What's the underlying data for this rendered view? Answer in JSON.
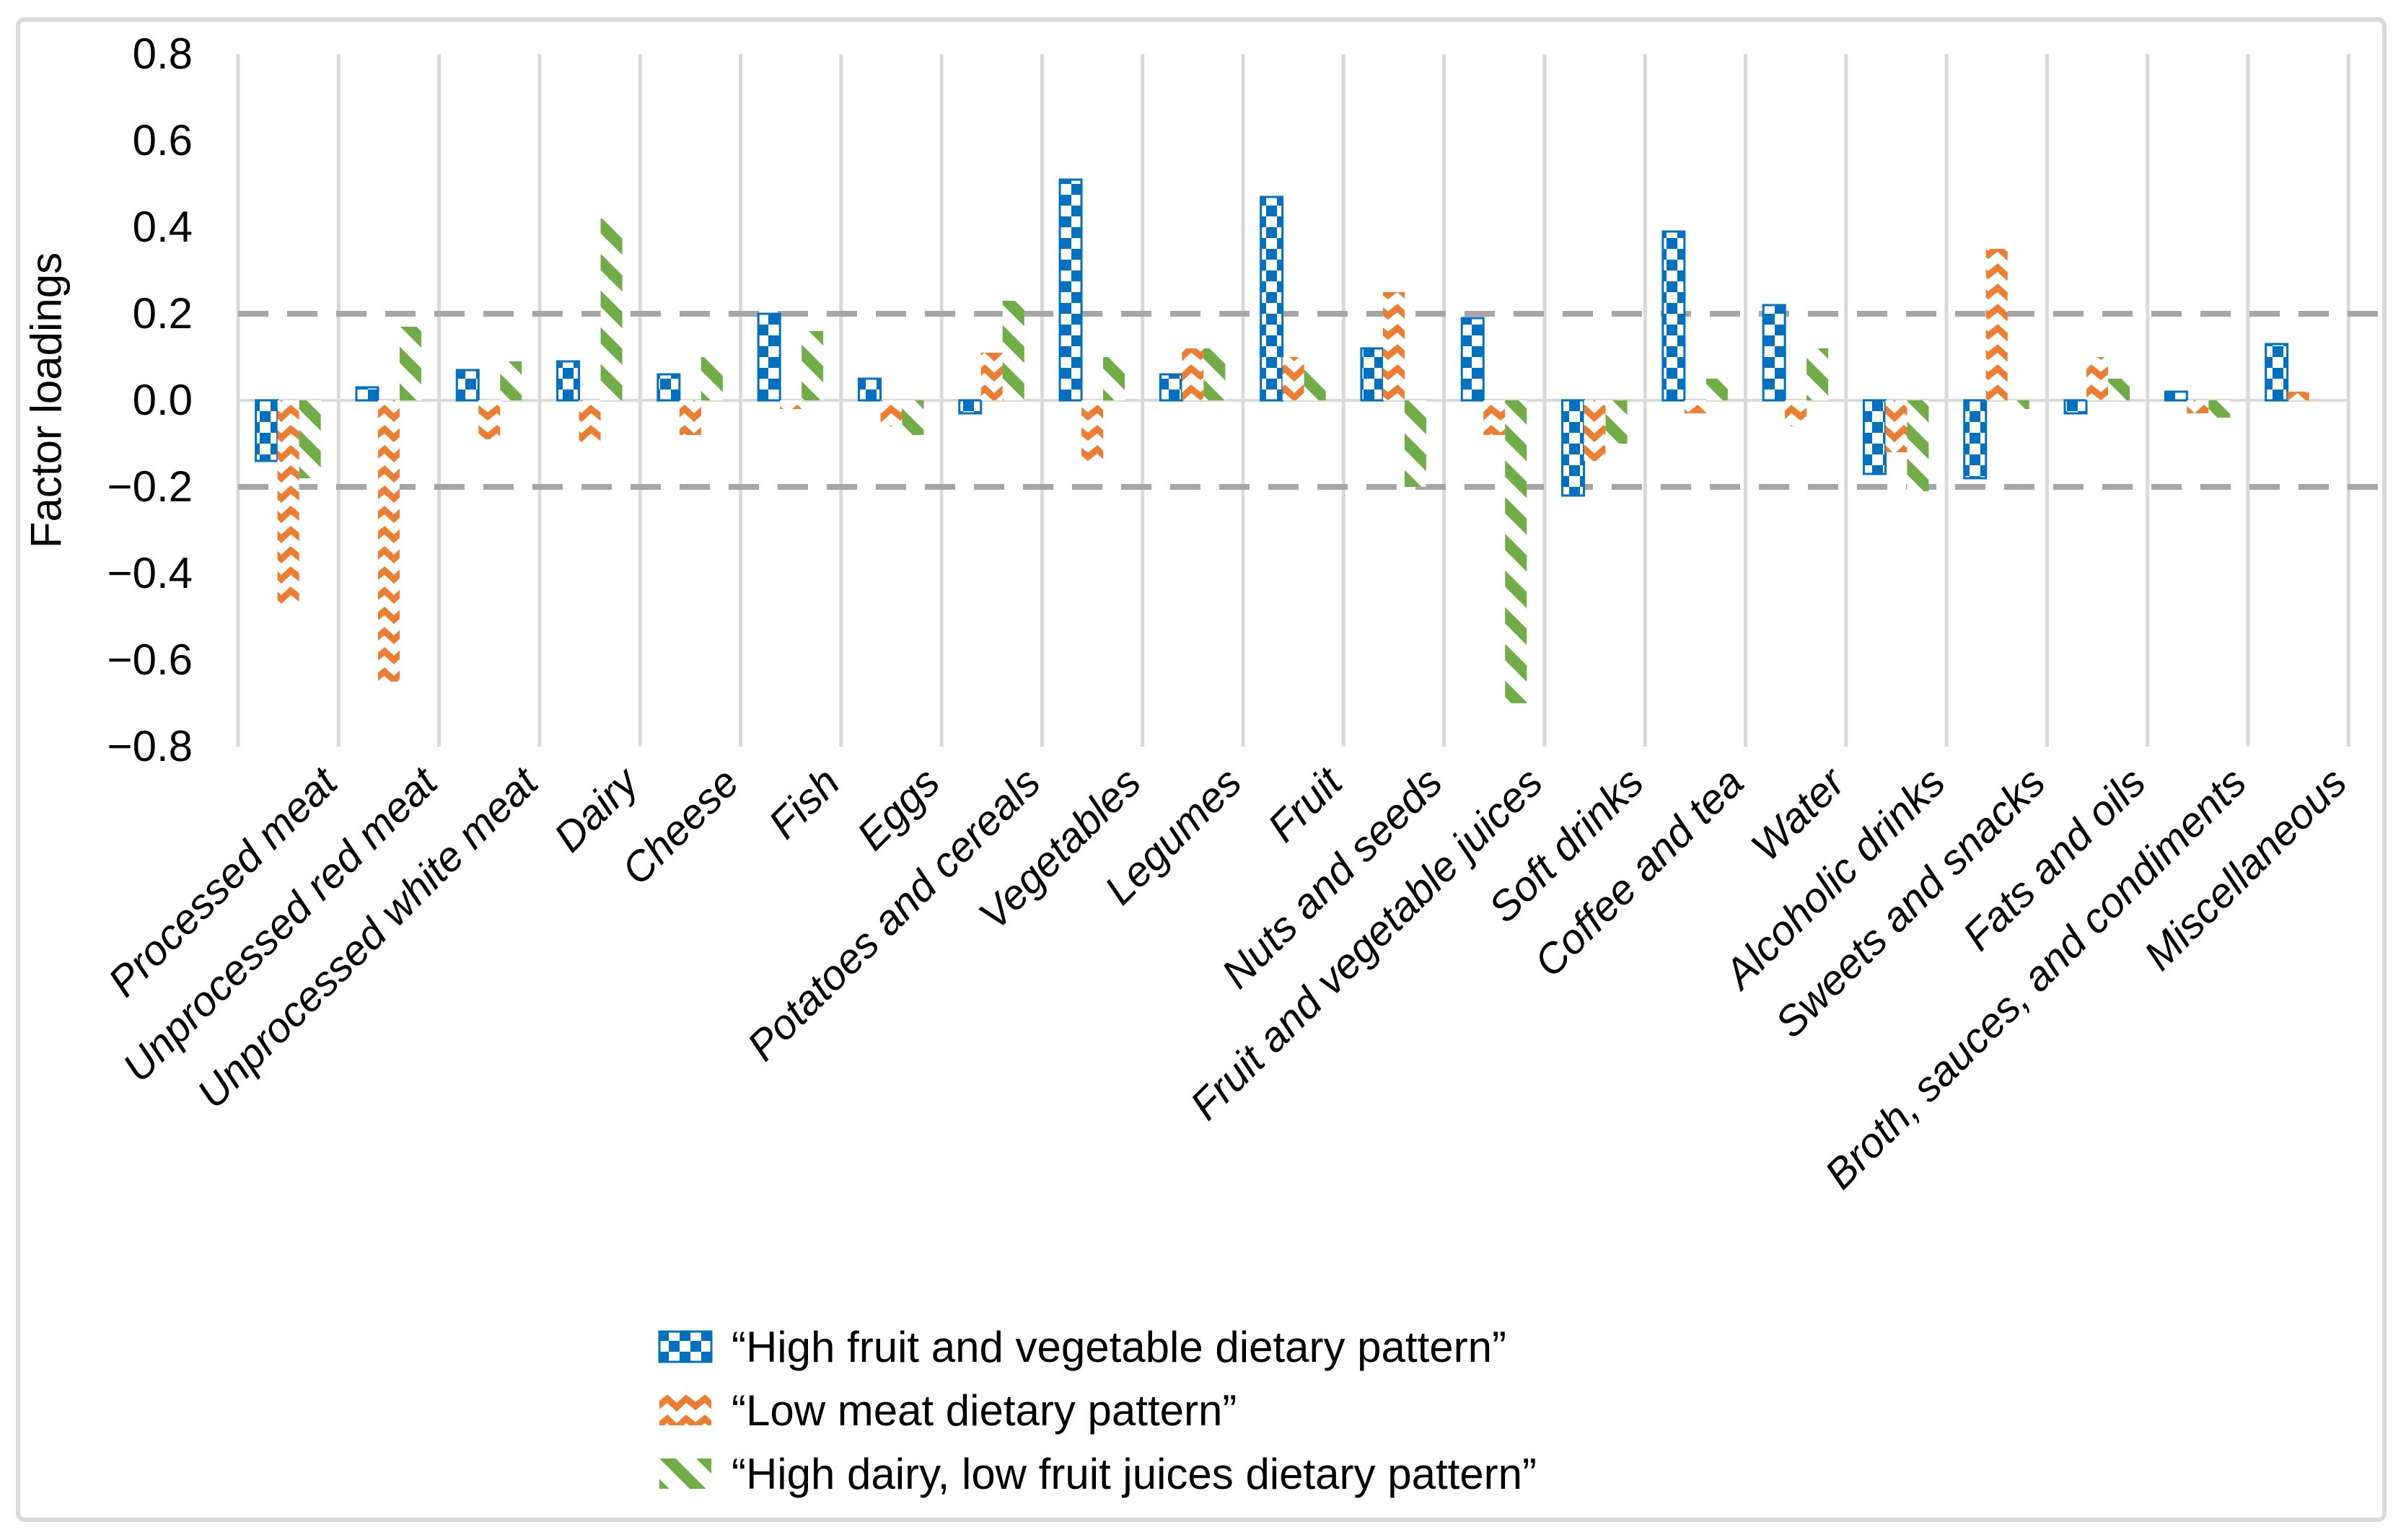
{
  "chart_data": {
    "type": "bar",
    "title": "",
    "ylabel": "Factor loadings",
    "ylim": [
      -0.8,
      0.8
    ],
    "ytick_step": 0.2,
    "yticks": [
      "0.8",
      "0.6",
      "0.4",
      "0.2",
      "0.0",
      "-0.2",
      "-0.4",
      "-0.6",
      "-0.8"
    ],
    "ref_lines": [
      0.2,
      -0.2
    ],
    "grid": "vertical category separators; dashed horizontal reference lines at +0.2 and -0.2",
    "legend_position": "bottom",
    "categories": [
      "Processed meat",
      "Unprocessed red meat",
      "Unprocessed white meat",
      "Dairy",
      "Cheese",
      "Fish",
      "Eggs",
      "Potatoes and cereals",
      "Vegetables",
      "Legumes",
      "Fruit",
      "Nuts and seeds",
      "Fruit and vegetable juices",
      "Soft drinks",
      "Coffee and tea",
      "Water",
      "Alcoholic drinks",
      "Sweets and snacks",
      "Fats and oils",
      "Broth, sauces, and condiments",
      "Miscellaneous"
    ],
    "series": [
      {
        "name": "“High fruit and vegetable dietary pattern”",
        "color": "#0070C0",
        "pattern": "checker",
        "values": [
          -0.14,
          0.03,
          0.07,
          0.09,
          0.06,
          0.2,
          0.05,
          -0.03,
          0.51,
          0.06,
          0.47,
          0.12,
          0.19,
          -0.22,
          0.39,
          0.22,
          -0.17,
          -0.18,
          -0.03,
          0.02,
          0.13
        ]
      },
      {
        "name": "“Low meat dietary pattern”",
        "color": "#ED7D31",
        "pattern": "wave",
        "values": [
          -0.47,
          -0.65,
          -0.09,
          -0.1,
          -0.08,
          -0.02,
          -0.06,
          0.11,
          -0.15,
          0.12,
          0.1,
          0.25,
          -0.08,
          -0.14,
          -0.03,
          -0.06,
          -0.12,
          0.35,
          0.1,
          -0.03,
          0.02
        ]
      },
      {
        "name": "“High dairy, low fruit juices dietary pattern”",
        "color": "#70AD47",
        "pattern": "diagonal-down",
        "values": [
          -0.18,
          0.17,
          0.09,
          0.42,
          0.1,
          0.16,
          -0.08,
          0.23,
          0.1,
          0.12,
          0.07,
          -0.2,
          -0.7,
          -0.1,
          0.05,
          0.12,
          -0.21,
          -0.02,
          0.05,
          -0.04,
          0.0
        ]
      }
    ]
  },
  "colors": {
    "background": "#FFFFFF",
    "frame": "#D9D9D9",
    "gridline": "#D9D9D9",
    "zero_line": "#D9D9D9",
    "dashed_reference": "#A6A6A6",
    "axis_text": "#000000"
  }
}
